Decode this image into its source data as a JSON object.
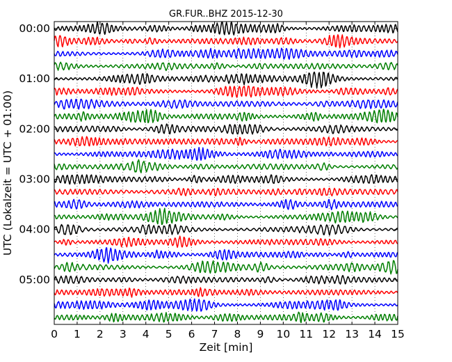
{
  "chart_data": {
    "type": "line",
    "title": "GR.FUR..BHZ 2015-12-30",
    "xlabel": "Zeit  [min]",
    "ylabel": "UTC (Lokalzeit = UTC + 01:00)",
    "xlim": [
      0,
      15
    ],
    "x_ticks": [
      "0",
      "1",
      "2",
      "3",
      "4",
      "5",
      "6",
      "7",
      "8",
      "9",
      "10",
      "11",
      "12",
      "13",
      "14",
      "15"
    ],
    "y_ticks": [
      "00:00",
      "01:00",
      "02:00",
      "03:00",
      "04:00",
      "05:00"
    ],
    "grid": true,
    "trace_count": 24,
    "trace_interval_min": 15,
    "trace_colors": [
      "#000000",
      "#ff0000",
      "#0000ff",
      "#007f00"
    ]
  }
}
